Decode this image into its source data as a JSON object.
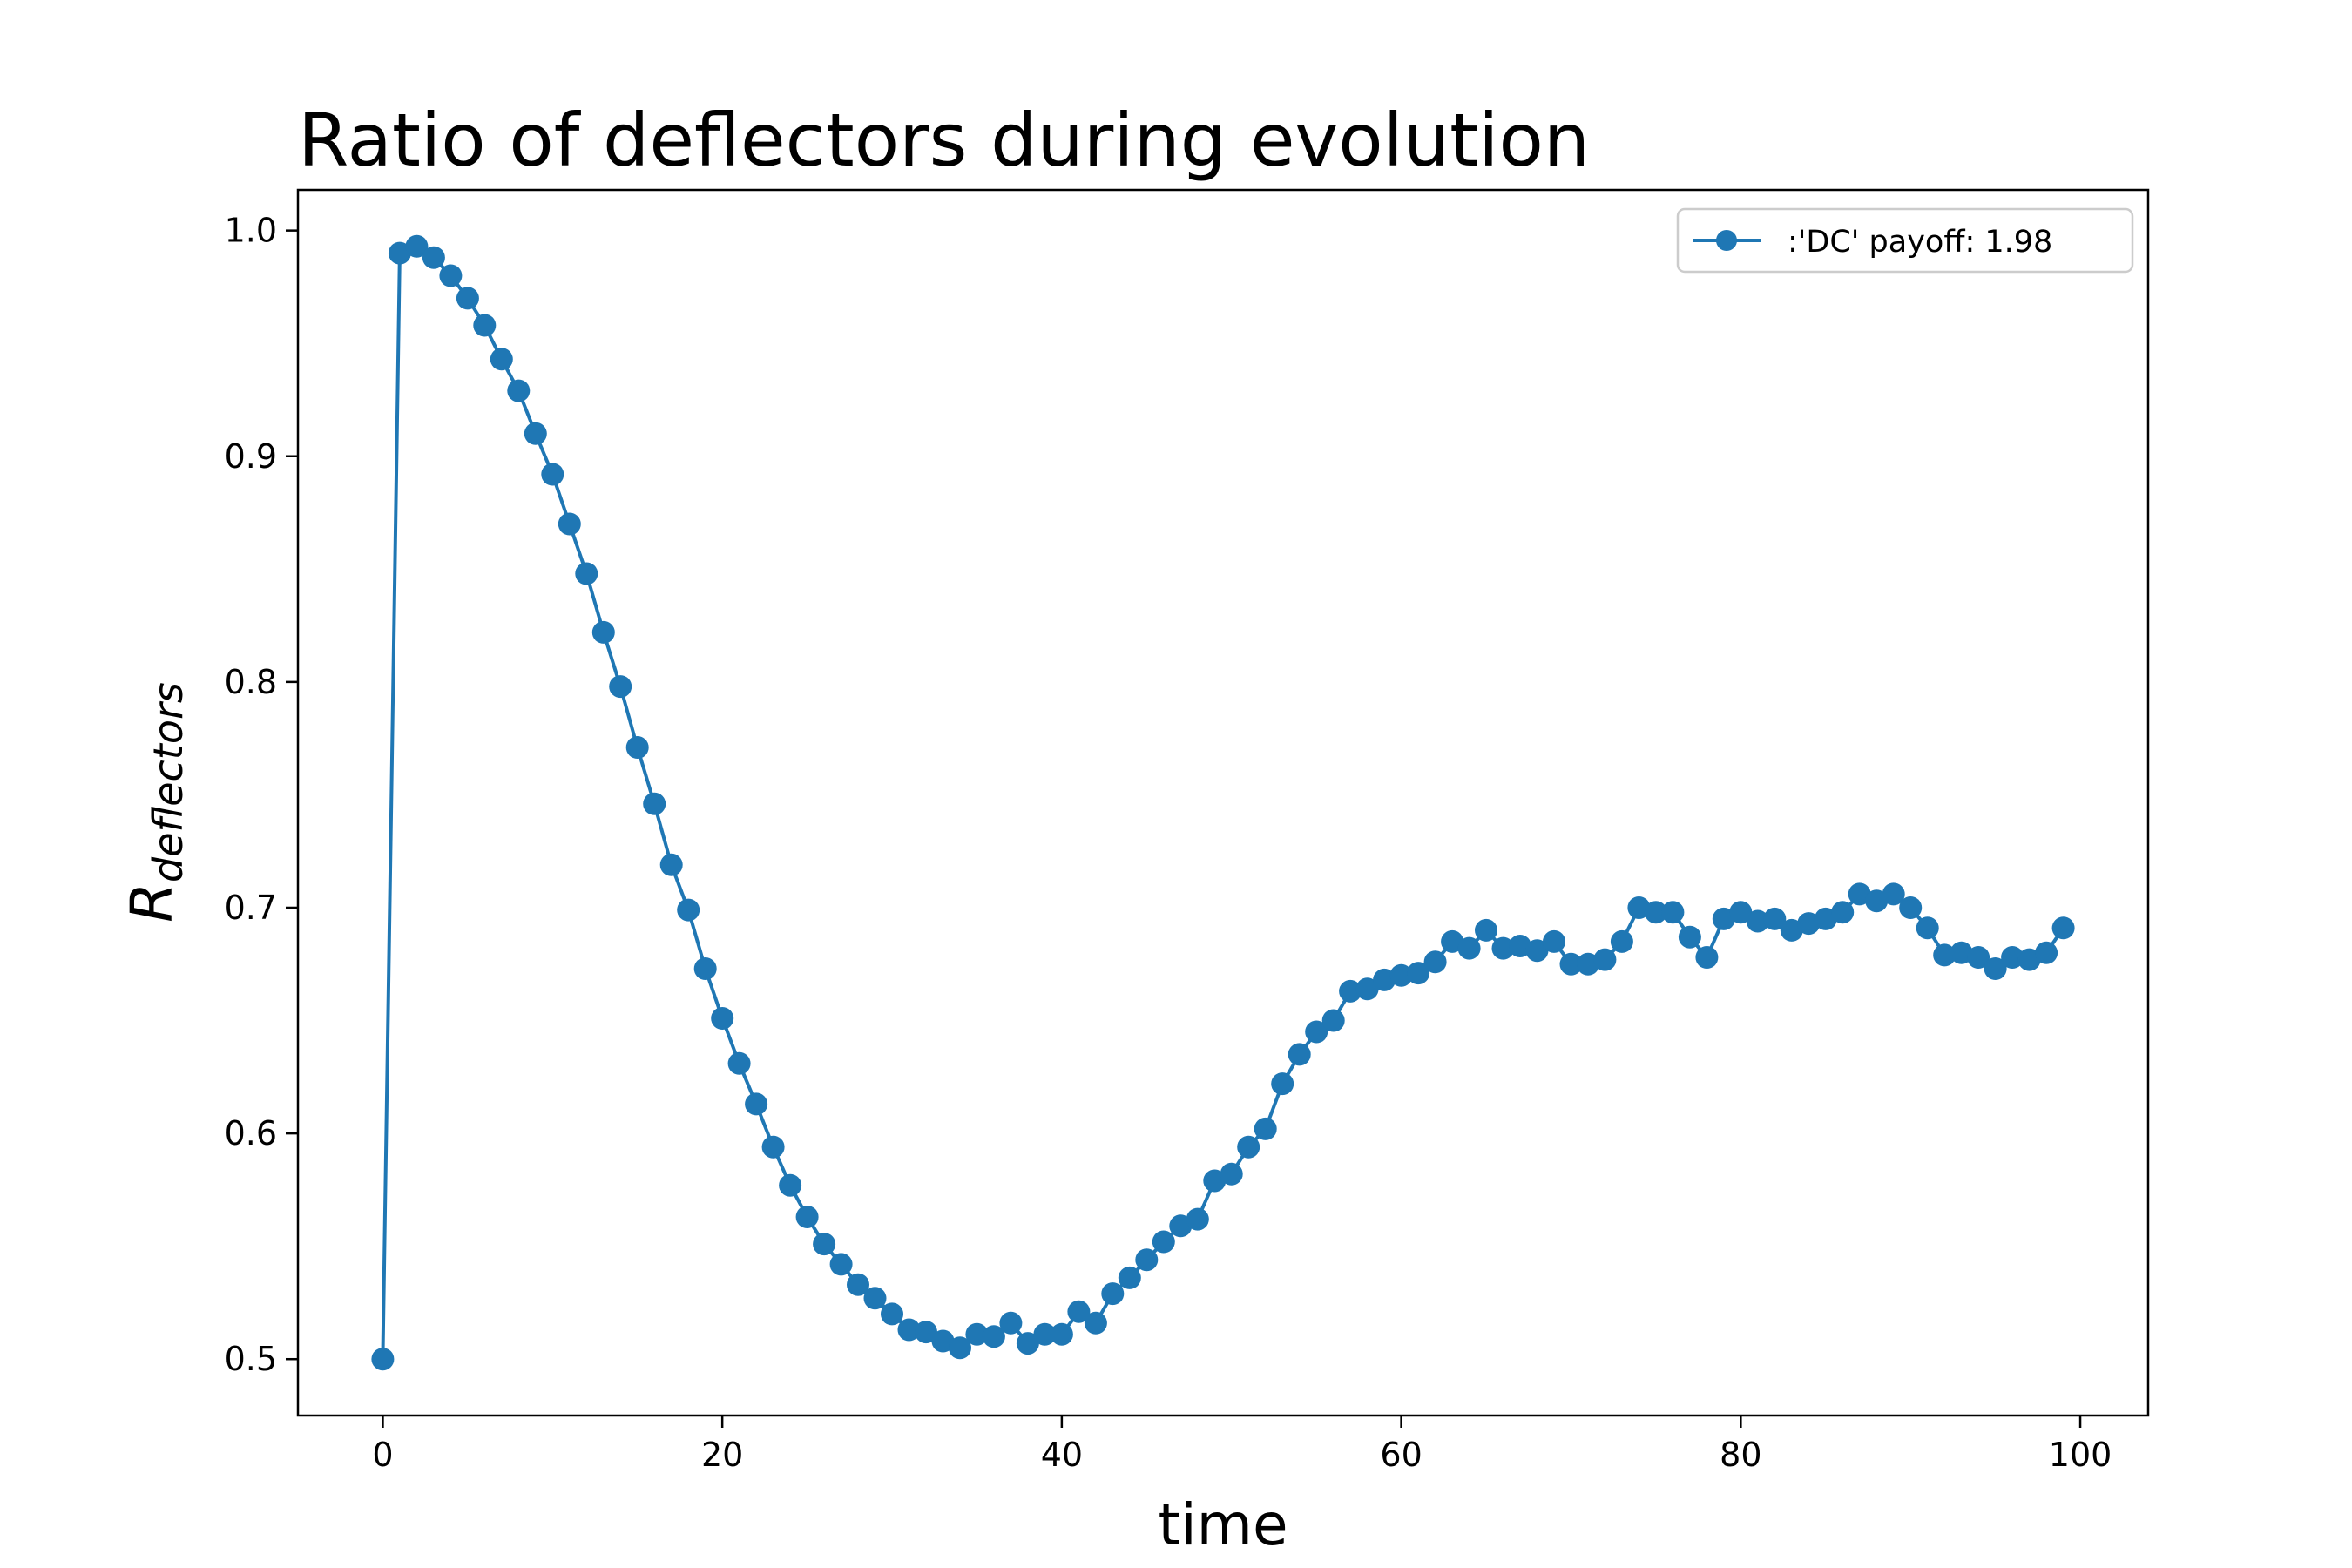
{
  "chart_data": {
    "type": "line",
    "title": "Ratio of deflectors during evolution",
    "xlabel": "time",
    "ylabel": {
      "main": "R",
      "subscript": "deflectors"
    },
    "xlim": [
      -5,
      104
    ],
    "ylim": [
      0.475,
      1.018
    ],
    "xticks": [
      "0",
      "20",
      "40",
      "60",
      "80",
      "100"
    ],
    "yticks": [
      "0.5",
      "0.6",
      "0.7",
      "0.8",
      "0.9",
      "1.0"
    ],
    "legend_position": "top-right",
    "grid": false,
    "series": [
      {
        "name": ":'DC' payoff: 1.98",
        "color": "#1f77b4",
        "marker": "circle",
        "x": [
          0,
          1,
          2,
          3,
          4,
          5,
          6,
          7,
          8,
          9,
          10,
          11,
          12,
          13,
          14,
          15,
          16,
          17,
          18,
          19,
          20,
          21,
          22,
          23,
          24,
          25,
          26,
          27,
          28,
          29,
          30,
          31,
          32,
          33,
          34,
          35,
          36,
          37,
          38,
          39,
          40,
          41,
          42,
          43,
          44,
          45,
          46,
          47,
          48,
          49,
          50,
          51,
          52,
          53,
          54,
          55,
          56,
          57,
          58,
          59,
          60,
          61,
          62,
          63,
          64,
          65,
          66,
          67,
          68,
          69,
          70,
          71,
          72,
          73,
          74,
          75,
          76,
          77,
          78,
          79,
          80,
          81,
          82,
          83,
          84,
          85,
          86,
          87,
          88,
          89,
          90,
          91,
          92,
          93,
          94,
          95,
          96,
          97,
          98,
          99
        ],
        "y": [
          0.5,
          0.99,
          0.993,
          0.988,
          0.98,
          0.97,
          0.958,
          0.943,
          0.929,
          0.91,
          0.892,
          0.87,
          0.848,
          0.822,
          0.798,
          0.771,
          0.746,
          0.719,
          0.699,
          0.673,
          0.651,
          0.631,
          0.613,
          0.594,
          0.577,
          0.563,
          0.551,
          0.542,
          0.533,
          0.527,
          0.52,
          0.513,
          0.512,
          0.508,
          0.505,
          0.511,
          0.51,
          0.516,
          0.507,
          0.511,
          0.511,
          0.521,
          0.516,
          0.529,
          0.536,
          0.544,
          0.552,
          0.559,
          0.562,
          0.579,
          0.582,
          0.594,
          0.602,
          0.622,
          0.635,
          0.645,
          0.65,
          0.663,
          0.664,
          0.668,
          0.67,
          0.671,
          0.676,
          0.685,
          0.682,
          0.69,
          0.682,
          0.683,
          0.681,
          0.685,
          0.675,
          0.675,
          0.677,
          0.685,
          0.7,
          0.698,
          0.698,
          0.687,
          0.678,
          0.695,
          0.698,
          0.694,
          0.695,
          0.69,
          0.693,
          0.695,
          0.698,
          0.706,
          0.703,
          0.706,
          0.7,
          0.691,
          0.679,
          0.68,
          0.678,
          0.673,
          0.678,
          0.677,
          0.68,
          0.691
        ]
      }
    ]
  }
}
